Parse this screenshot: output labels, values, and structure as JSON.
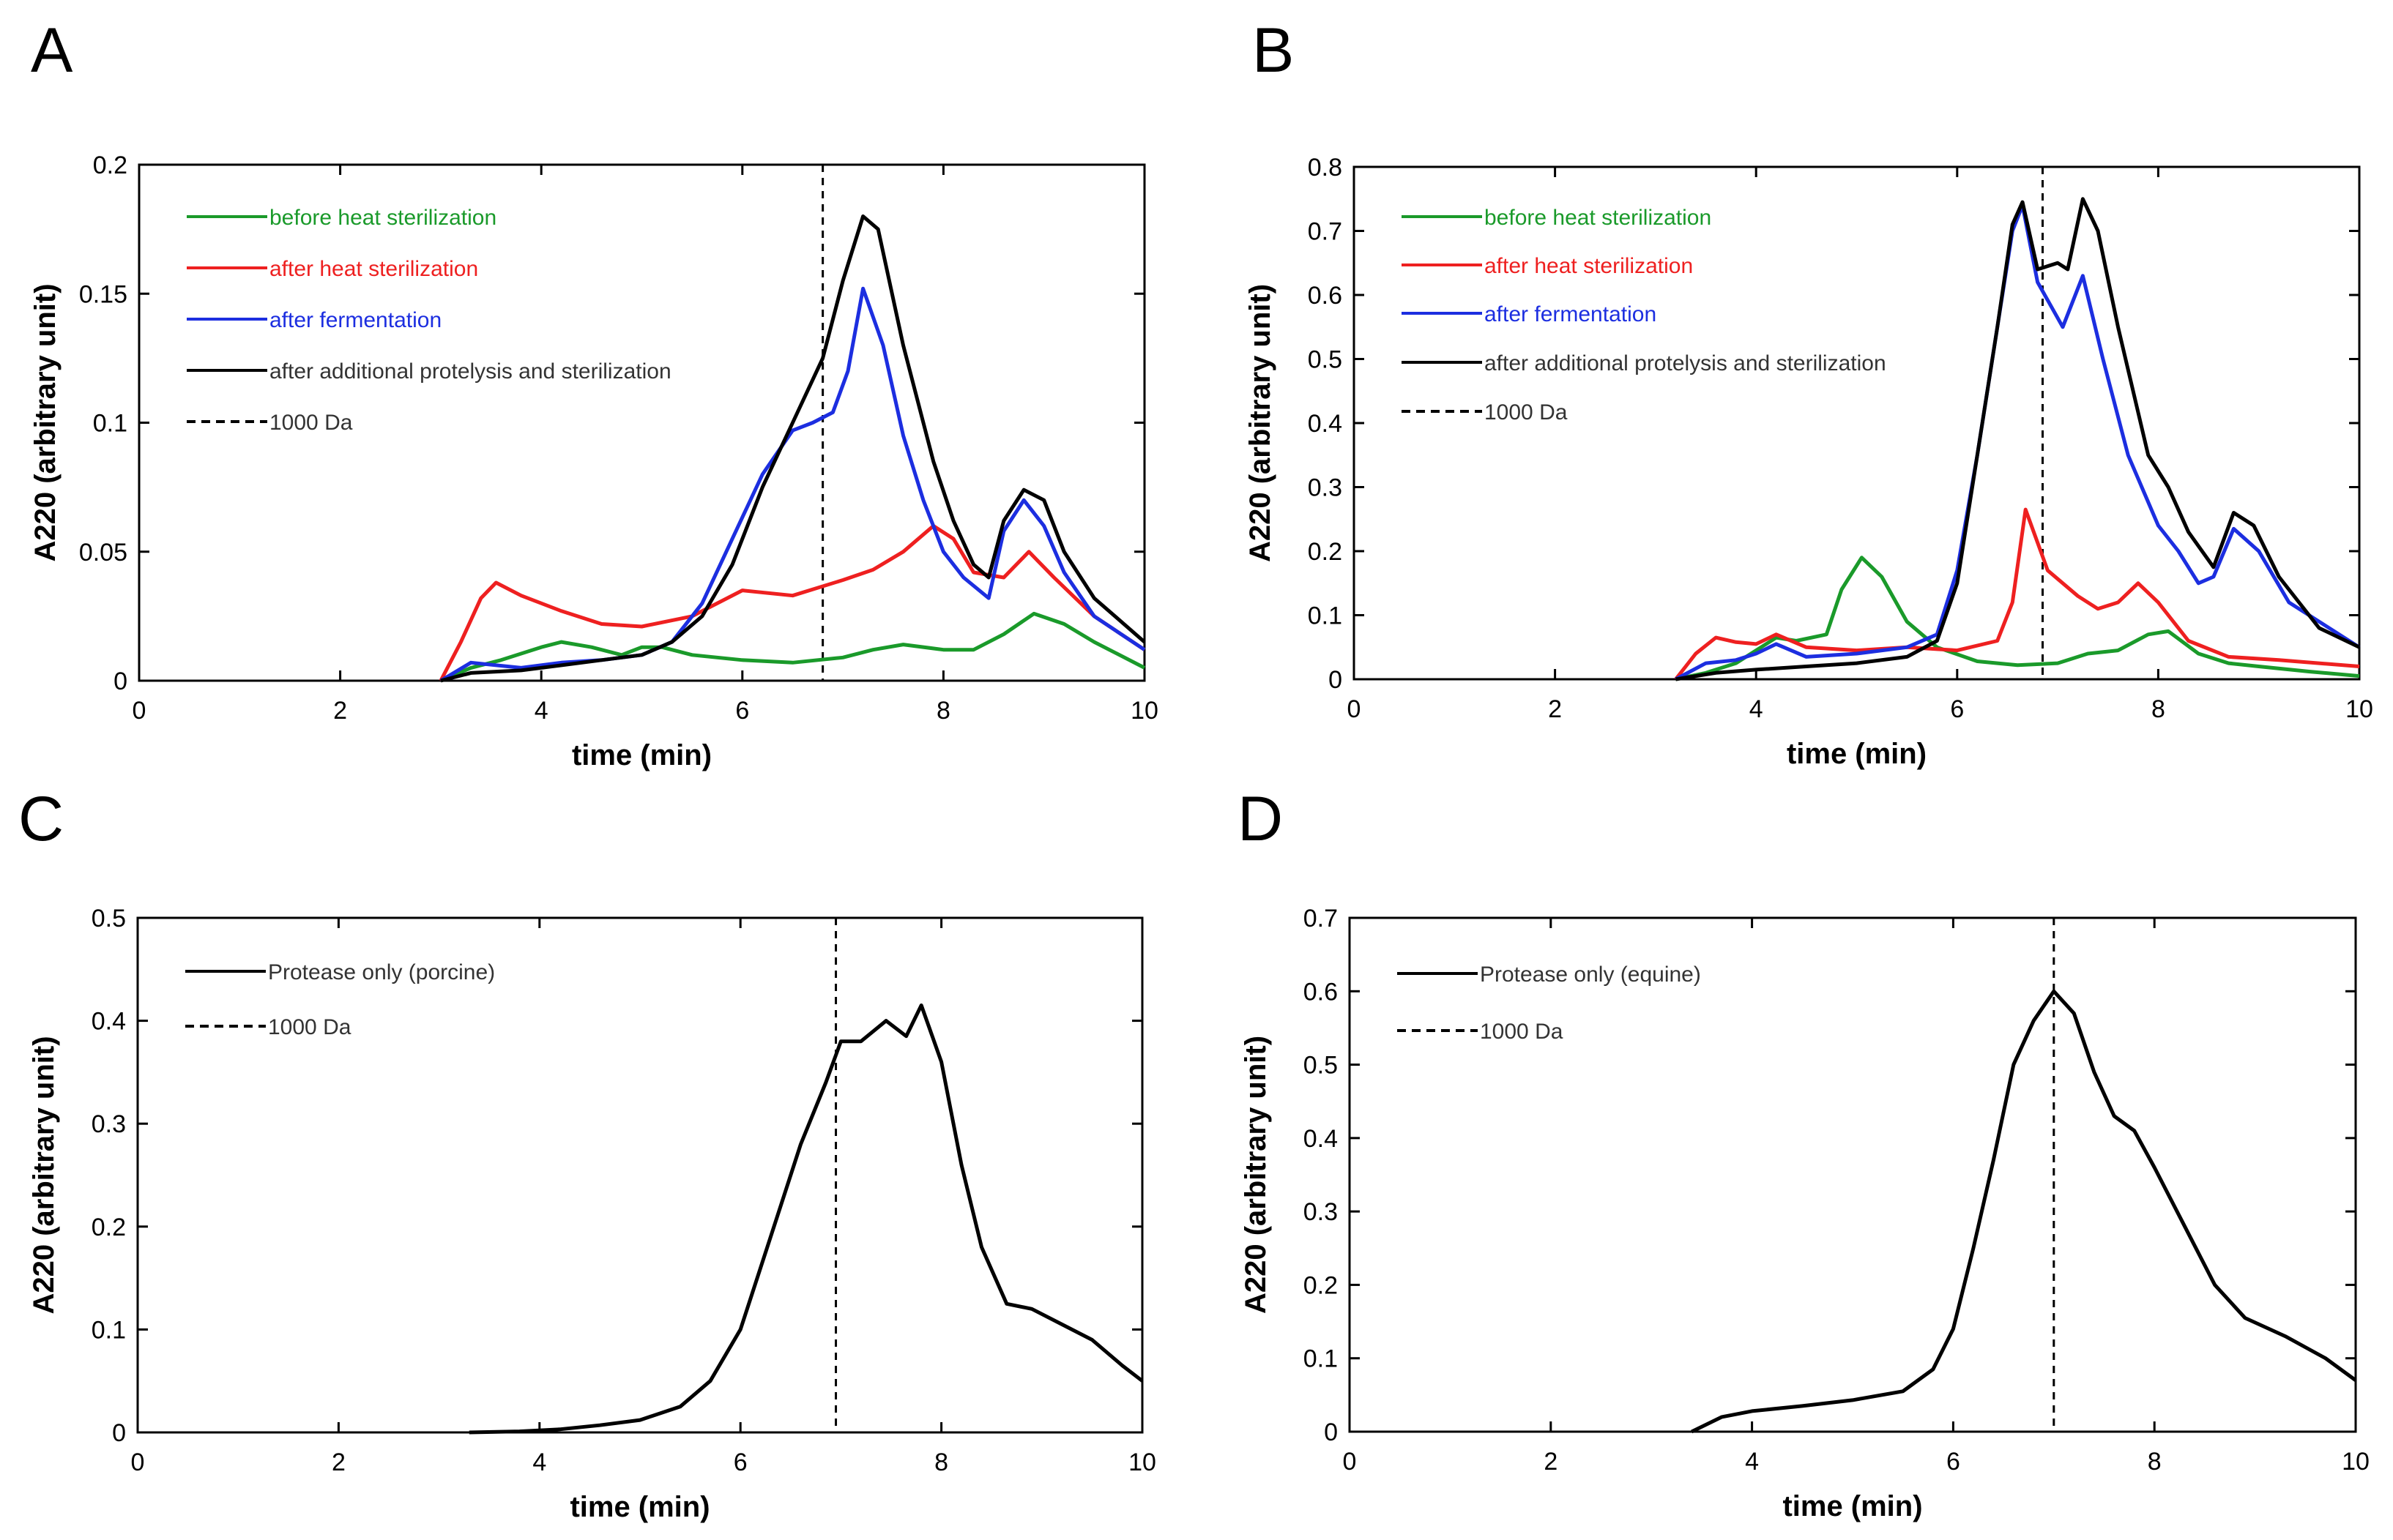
{
  "figure": {
    "description": ""
  },
  "chart_data": [
    {
      "panel_label": "A",
      "type": "line",
      "xlabel": "time (min)",
      "ylabel": "A220 (arbitrary unit)",
      "xlim": [
        0,
        10
      ],
      "ylim": [
        0,
        0.2
      ],
      "xticks": [
        "0",
        "2",
        "4",
        "6",
        "8",
        "10"
      ],
      "yticks": [
        "0",
        "0.05",
        "0.1",
        "0.15",
        "0.2"
      ],
      "marker_x": 6.8,
      "marker_label": "1000 Da",
      "series": [
        {
          "name": "before heat sterilization",
          "color": "#1a9a2a",
          "x": [
            3.0,
            3.3,
            3.6,
            4.0,
            4.2,
            4.5,
            4.8,
            5.0,
            5.2,
            5.5,
            6.0,
            6.5,
            7.0,
            7.3,
            7.6,
            8.0,
            8.3,
            8.6,
            8.9,
            9.2,
            9.5,
            10.0
          ],
          "y": [
            0.0,
            0.005,
            0.008,
            0.013,
            0.015,
            0.013,
            0.01,
            0.013,
            0.013,
            0.01,
            0.008,
            0.007,
            0.009,
            0.012,
            0.014,
            0.012,
            0.012,
            0.018,
            0.026,
            0.022,
            0.015,
            0.005
          ]
        },
        {
          "name": "after heat sterilization",
          "color": "#ee2020",
          "x": [
            3.0,
            3.2,
            3.4,
            3.55,
            3.8,
            4.2,
            4.6,
            5.0,
            5.5,
            6.0,
            6.5,
            7.0,
            7.3,
            7.6,
            7.9,
            8.1,
            8.3,
            8.6,
            8.85,
            9.1,
            9.5,
            10.0
          ],
          "y": [
            0.0,
            0.015,
            0.032,
            0.038,
            0.033,
            0.027,
            0.022,
            0.021,
            0.025,
            0.035,
            0.033,
            0.039,
            0.043,
            0.05,
            0.06,
            0.055,
            0.042,
            0.04,
            0.05,
            0.04,
            0.025,
            0.012
          ]
        },
        {
          "name": "after fermentation",
          "color": "#1c2ee0",
          "x": [
            3.0,
            3.3,
            3.8,
            4.2,
            4.6,
            5.0,
            5.3,
            5.6,
            5.9,
            6.2,
            6.5,
            6.7,
            6.9,
            7.05,
            7.2,
            7.4,
            7.6,
            7.8,
            8.0,
            8.2,
            8.45,
            8.6,
            8.8,
            9.0,
            9.2,
            9.5,
            10.0
          ],
          "y": [
            0.0,
            0.007,
            0.005,
            0.007,
            0.008,
            0.01,
            0.015,
            0.03,
            0.055,
            0.08,
            0.097,
            0.1,
            0.104,
            0.12,
            0.152,
            0.13,
            0.095,
            0.07,
            0.05,
            0.04,
            0.032,
            0.058,
            0.07,
            0.06,
            0.042,
            0.025,
            0.012
          ]
        },
        {
          "name": "after additional protelysis and sterilization",
          "color": "#000000",
          "x": [
            3.0,
            3.3,
            3.8,
            4.2,
            4.6,
            5.0,
            5.3,
            5.6,
            5.9,
            6.2,
            6.5,
            6.8,
            7.0,
            7.2,
            7.35,
            7.6,
            7.9,
            8.1,
            8.3,
            8.45,
            8.6,
            8.8,
            9.0,
            9.2,
            9.5,
            10.0
          ],
          "y": [
            0.0,
            0.003,
            0.004,
            0.006,
            0.008,
            0.01,
            0.015,
            0.025,
            0.045,
            0.075,
            0.1,
            0.125,
            0.155,
            0.18,
            0.175,
            0.13,
            0.085,
            0.062,
            0.045,
            0.04,
            0.062,
            0.074,
            0.07,
            0.05,
            0.032,
            0.015
          ]
        }
      ]
    },
    {
      "panel_label": "B",
      "type": "line",
      "xlabel": "time (min)",
      "ylabel": "A220 (arbitrary unit)",
      "xlim": [
        0,
        10
      ],
      "ylim": [
        0,
        0.8
      ],
      "xticks": [
        "0",
        "2",
        "4",
        "6",
        "8",
        "10"
      ],
      "yticks": [
        "0",
        "0.1",
        "0.2",
        "0.3",
        "0.4",
        "0.5",
        "0.6",
        "0.7",
        "0.8"
      ],
      "marker_x": 6.85,
      "marker_label": "1000 Da",
      "series": [
        {
          "name": "before heat sterilization",
          "color": "#1a9a2a",
          "x": [
            3.2,
            3.5,
            3.8,
            4.0,
            4.2,
            4.4,
            4.7,
            4.85,
            5.05,
            5.25,
            5.5,
            5.8,
            6.2,
            6.6,
            7.0,
            7.3,
            7.6,
            7.9,
            8.1,
            8.4,
            8.7,
            9.0,
            9.5,
            10.0
          ],
          "y": [
            0.0,
            0.01,
            0.025,
            0.045,
            0.065,
            0.06,
            0.07,
            0.14,
            0.19,
            0.16,
            0.09,
            0.05,
            0.028,
            0.022,
            0.025,
            0.04,
            0.045,
            0.07,
            0.075,
            0.04,
            0.025,
            0.02,
            0.012,
            0.005
          ]
        },
        {
          "name": "after heat sterilization",
          "color": "#ee2020",
          "x": [
            3.2,
            3.4,
            3.6,
            3.8,
            4.0,
            4.2,
            4.5,
            5.0,
            5.5,
            6.0,
            6.4,
            6.55,
            6.68,
            6.9,
            7.2,
            7.4,
            7.6,
            7.8,
            8.0,
            8.3,
            8.7,
            9.2,
            10.0
          ],
          "y": [
            0.0,
            0.04,
            0.065,
            0.058,
            0.055,
            0.07,
            0.05,
            0.045,
            0.05,
            0.045,
            0.06,
            0.12,
            0.265,
            0.17,
            0.13,
            0.11,
            0.12,
            0.15,
            0.12,
            0.06,
            0.035,
            0.03,
            0.02
          ]
        },
        {
          "name": "after fermentation",
          "color": "#1c2ee0",
          "x": [
            3.2,
            3.5,
            3.8,
            4.0,
            4.2,
            4.5,
            5.0,
            5.5,
            5.8,
            6.0,
            6.2,
            6.4,
            6.55,
            6.65,
            6.8,
            7.05,
            7.25,
            7.45,
            7.7,
            8.0,
            8.2,
            8.4,
            8.55,
            8.75,
            9.0,
            9.3,
            10.0
          ],
          "y": [
            0.0,
            0.025,
            0.03,
            0.04,
            0.055,
            0.035,
            0.04,
            0.05,
            0.07,
            0.17,
            0.35,
            0.55,
            0.7,
            0.74,
            0.62,
            0.55,
            0.63,
            0.5,
            0.35,
            0.24,
            0.2,
            0.15,
            0.16,
            0.235,
            0.2,
            0.12,
            0.05
          ]
        },
        {
          "name": "after additional protelysis and sterilization",
          "color": "#000000",
          "x": [
            3.2,
            3.6,
            4.0,
            4.5,
            5.0,
            5.5,
            5.8,
            6.0,
            6.2,
            6.4,
            6.55,
            6.65,
            6.8,
            7.0,
            7.1,
            7.25,
            7.4,
            7.6,
            7.9,
            8.1,
            8.3,
            8.55,
            8.75,
            8.95,
            9.2,
            9.6,
            10.0
          ],
          "y": [
            0.0,
            0.01,
            0.015,
            0.02,
            0.025,
            0.035,
            0.06,
            0.15,
            0.35,
            0.55,
            0.71,
            0.745,
            0.64,
            0.65,
            0.64,
            0.75,
            0.7,
            0.55,
            0.35,
            0.3,
            0.23,
            0.175,
            0.26,
            0.24,
            0.16,
            0.08,
            0.05
          ]
        }
      ]
    },
    {
      "panel_label": "C",
      "type": "line",
      "xlabel": "time (min)",
      "ylabel": "A220 (arbitrary unit)",
      "xlim": [
        0,
        10
      ],
      "ylim": [
        0,
        0.5
      ],
      "xticks": [
        "0",
        "2",
        "4",
        "6",
        "8",
        "10"
      ],
      "yticks": [
        "0",
        "0.1",
        "0.2",
        "0.3",
        "0.4",
        "0.5"
      ],
      "marker_x": 6.95,
      "marker_label": "1000 Da",
      "series": [
        {
          "name": "Protease only (porcine)",
          "color": "#000000",
          "x": [
            3.3,
            3.8,
            4.2,
            4.6,
            5.0,
            5.4,
            5.7,
            6.0,
            6.3,
            6.6,
            6.85,
            7.0,
            7.2,
            7.45,
            7.65,
            7.8,
            8.0,
            8.2,
            8.4,
            8.65,
            8.9,
            9.2,
            9.5,
            9.8,
            10.0
          ],
          "y": [
            0.0,
            0.001,
            0.003,
            0.007,
            0.012,
            0.025,
            0.05,
            0.1,
            0.19,
            0.28,
            0.34,
            0.38,
            0.38,
            0.4,
            0.385,
            0.415,
            0.36,
            0.26,
            0.18,
            0.125,
            0.12,
            0.105,
            0.09,
            0.065,
            0.05
          ]
        }
      ]
    },
    {
      "panel_label": "D",
      "type": "line",
      "xlabel": "time (min)",
      "ylabel": "A220 (arbitrary unit)",
      "xlim": [
        0,
        10
      ],
      "ylim": [
        0,
        0.7
      ],
      "xticks": [
        "0",
        "2",
        "4",
        "6",
        "8",
        "10"
      ],
      "yticks": [
        "0",
        "0.1",
        "0.2",
        "0.3",
        "0.4",
        "0.5",
        "0.6",
        "0.7"
      ],
      "marker_x": 7.0,
      "marker_label": "1000 Da",
      "series": [
        {
          "name": "Protease only (equine)",
          "color": "#000000",
          "x": [
            3.4,
            3.7,
            4.0,
            4.5,
            5.0,
            5.5,
            5.8,
            6.0,
            6.2,
            6.4,
            6.6,
            6.8,
            7.0,
            7.2,
            7.4,
            7.6,
            7.8,
            8.0,
            8.3,
            8.6,
            8.9,
            9.3,
            9.7,
            10.0
          ],
          "y": [
            0.0,
            0.02,
            0.028,
            0.035,
            0.043,
            0.055,
            0.085,
            0.14,
            0.25,
            0.37,
            0.5,
            0.56,
            0.6,
            0.57,
            0.49,
            0.43,
            0.41,
            0.36,
            0.28,
            0.2,
            0.155,
            0.13,
            0.1,
            0.07
          ]
        }
      ]
    }
  ]
}
